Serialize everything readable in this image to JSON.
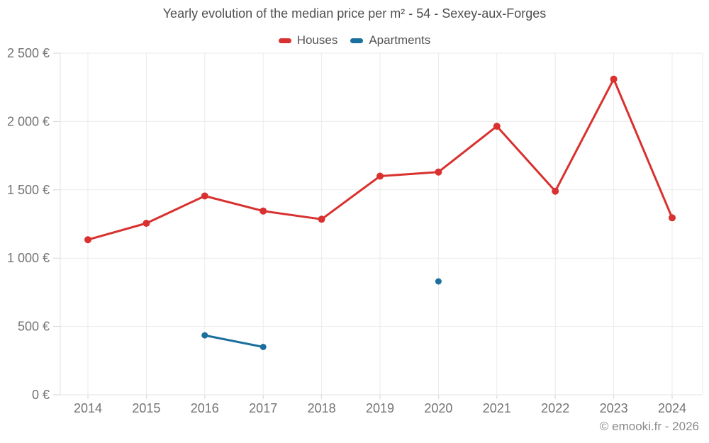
{
  "title": "Yearly evolution of the median price per m² - 54 - Sexey-aux-Forges",
  "legend": [
    {
      "label": "Houses",
      "color": "#d8312f"
    },
    {
      "label": "Apartments",
      "color": "#1b6f9e"
    }
  ],
  "footer": "© emooki.fr - 2026",
  "chart_data": {
    "type": "line",
    "title": "Yearly evolution of the median price per m² - 54 - Sexey-aux-Forges",
    "categories": [
      "2014",
      "2015",
      "2016",
      "2017",
      "2018",
      "2019",
      "2020",
      "2021",
      "2022",
      "2023",
      "2024"
    ],
    "series": [
      {
        "name": "Houses",
        "color": "#d8312f",
        "values": [
          1135,
          1255,
          1455,
          1345,
          1285,
          1600,
          1630,
          1965,
          1490,
          2310,
          1295
        ]
      },
      {
        "name": "Apartments",
        "color": "#1b6f9e",
        "values": [
          null,
          null,
          435,
          350,
          null,
          null,
          830,
          null,
          null,
          null,
          null
        ]
      }
    ],
    "xlabel": "",
    "ylabel": "",
    "ylim": [
      0,
      2500
    ],
    "ytick_step": 500,
    "ytick_labels": [
      "0 €",
      "500 €",
      "1 000 €",
      "1 500 €",
      "2 000 €",
      "2 500 €"
    ],
    "grid": true,
    "legend_position": "top",
    "currency": "€"
  }
}
